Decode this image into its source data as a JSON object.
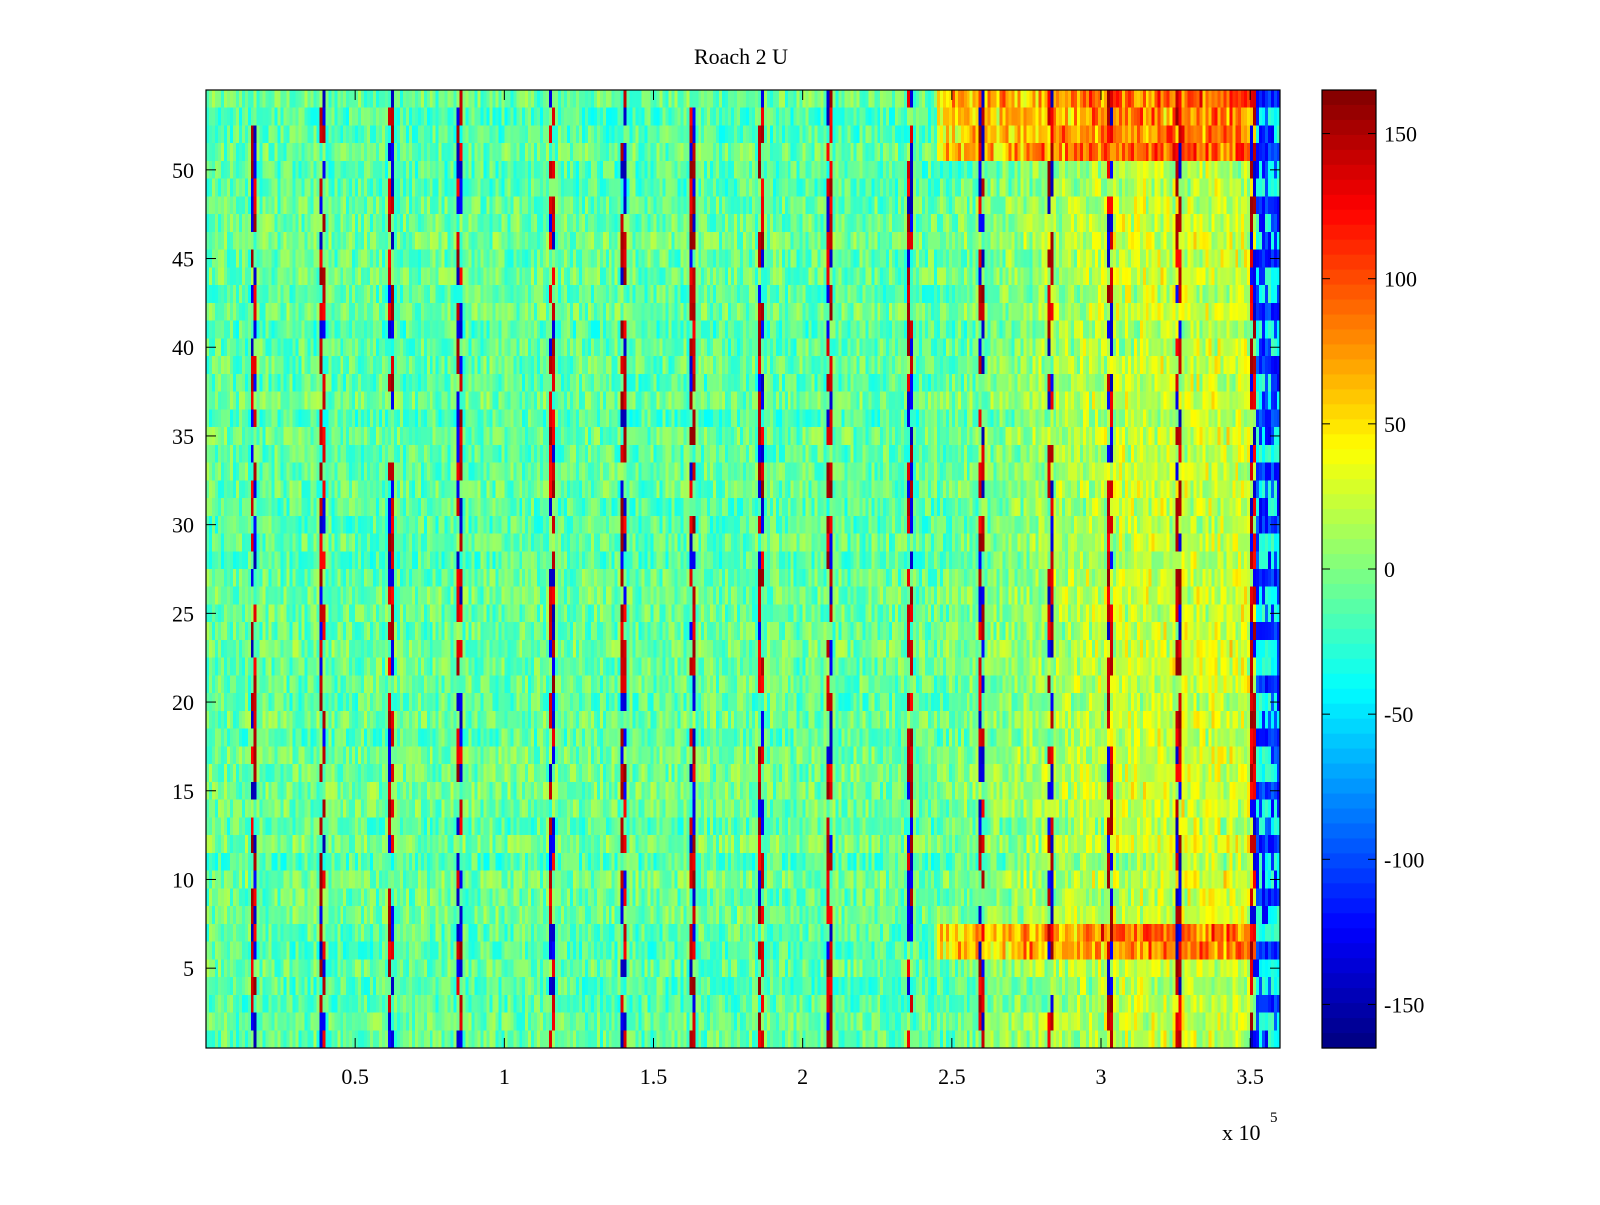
{
  "chart_data": {
    "type": "heatmap",
    "title": "Roach 2 U",
    "xlabel": "",
    "ylabel": "",
    "colormap": "jet",
    "x_multiplier_label": "x 10",
    "x_multiplier_exponent": "5",
    "xlim": [
      0,
      360000
    ],
    "ylim": [
      0.5,
      54.5
    ],
    "clim": [
      -165,
      165
    ],
    "xticks": [
      {
        "value": 50000,
        "label": "0.5"
      },
      {
        "value": 100000,
        "label": "1"
      },
      {
        "value": 150000,
        "label": "1.5"
      },
      {
        "value": 200000,
        "label": "2"
      },
      {
        "value": 250000,
        "label": "2.5"
      },
      {
        "value": 300000,
        "label": "3"
      },
      {
        "value": 350000,
        "label": "3.5"
      }
    ],
    "yticks": [
      5,
      10,
      15,
      20,
      25,
      30,
      35,
      40,
      45,
      50
    ],
    "colorbar_ticks": [
      150,
      100,
      50,
      0,
      -50,
      -100,
      -150
    ],
    "rows": 54,
    "n_columns": 360,
    "background_level": -10,
    "noise_amplitude": 25,
    "periodic_spike_x": [
      16000,
      39000,
      62000,
      85000,
      116000,
      140000,
      163000,
      186000,
      209000,
      236000,
      260000,
      283000,
      303000,
      326000,
      351000
    ],
    "warm_region": {
      "x_start": 245000,
      "x_end": 352000,
      "level": 35
    },
    "hot_rows": [
      6,
      7,
      51,
      52,
      53,
      54
    ],
    "cold_edge": {
      "x_start": 352000,
      "x_end": 360000,
      "level": -90
    }
  }
}
